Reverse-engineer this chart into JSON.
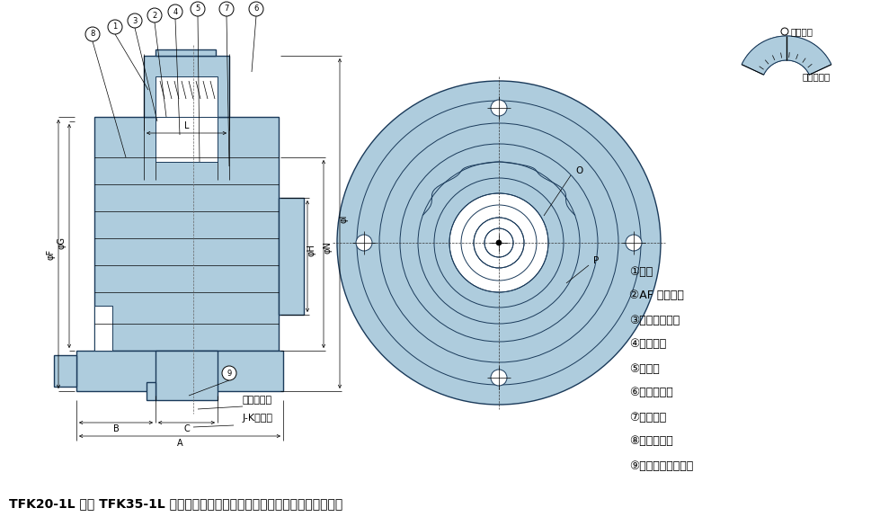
{
  "bg_color": "#ffffff",
  "part_fill_color": "#aeccdd",
  "part_edge_color": "#1a3a5a",
  "dim_line_color": "#000000",
  "parts_list": [
    "①ハブ",
    "②AF フランジ",
    "③すべり軸受け",
    "④プレート",
    "⑤皿バネ",
    "⑥調節ナット",
    "⑦ワッシヤ",
    "⑧穴付止ネジ",
    "⑨ロックスクリュー"
  ],
  "bottom_text": "TFK20-1L 及び TFK35-1L には皿バネとプレートの間にスペーサが入ります。",
  "label_toruku": "トルク目盛",
  "label_jktap": "J-Kタップ",
  "label_aimark": "合マーク",
  "circle_numbers": [
    "8",
    "1",
    "3",
    "2",
    "4",
    "5",
    "7",
    "6"
  ]
}
